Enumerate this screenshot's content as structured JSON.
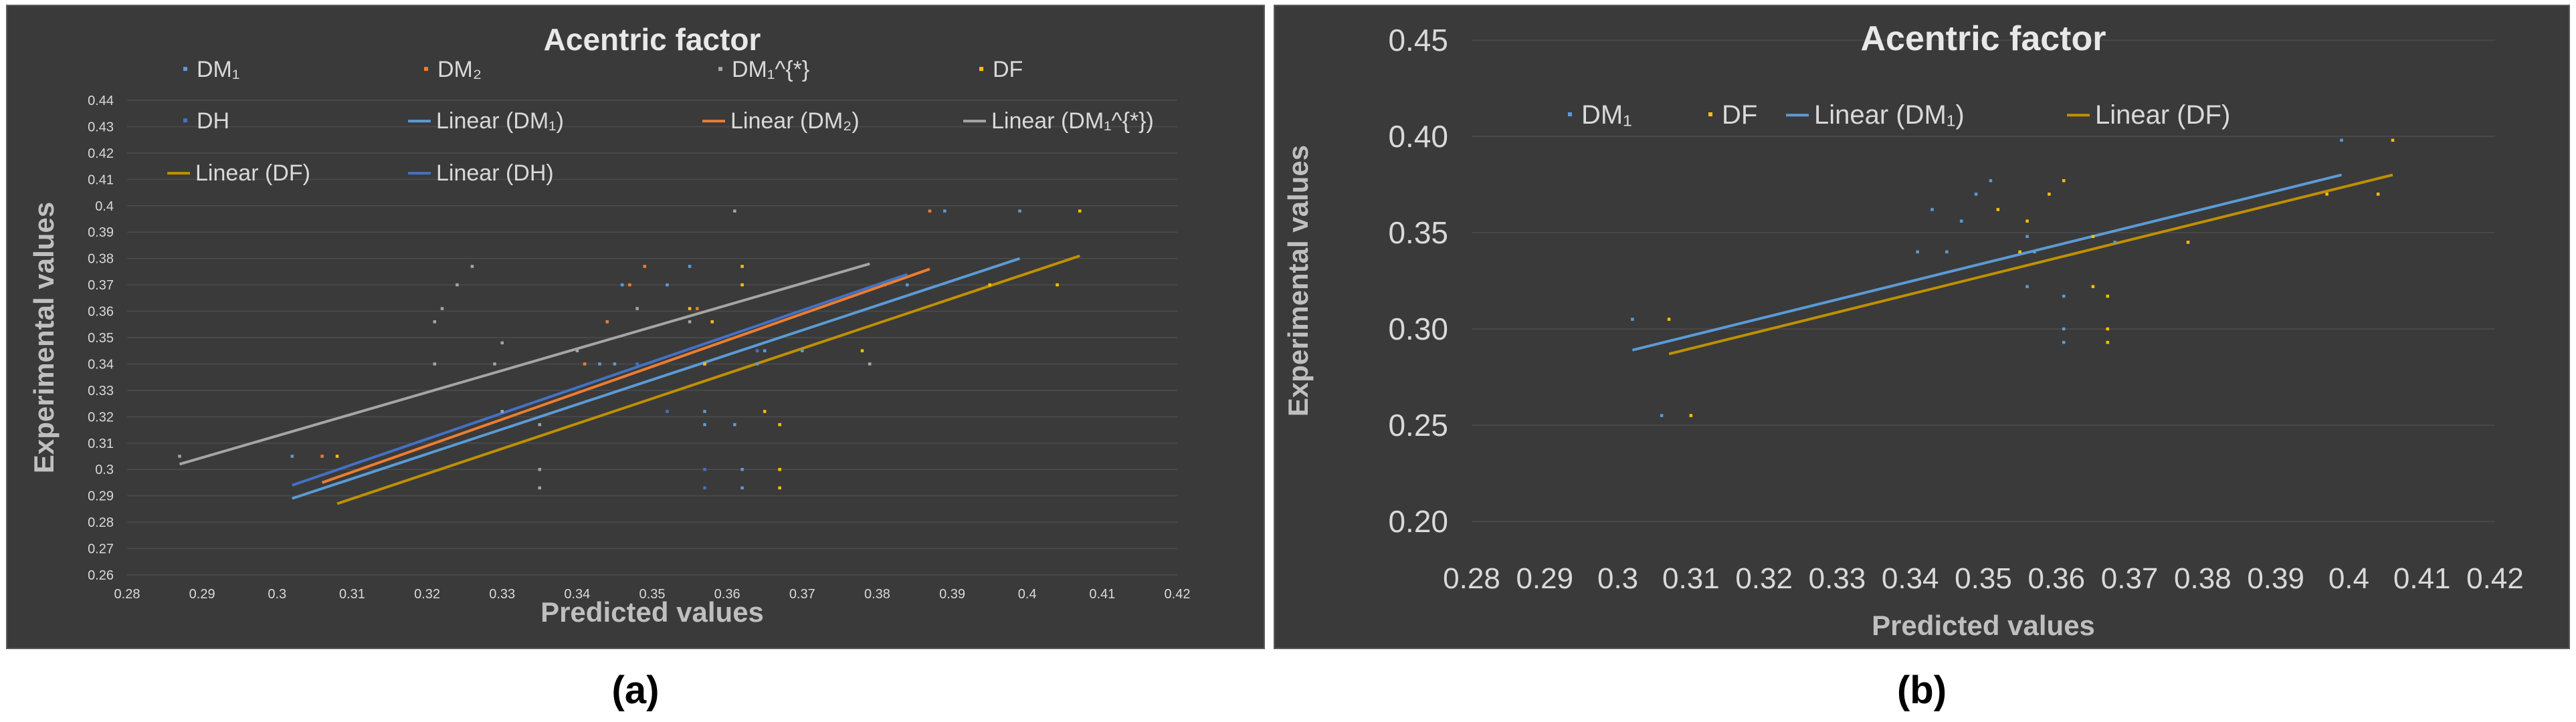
{
  "colors": {
    "bg": "#3a3a3a",
    "panel_border": "#5a5a5a",
    "grid": "#4c4c4c",
    "text_light": "#d9d9d9",
    "title": "#e8e8e8",
    "dm1": "#5b9bd5",
    "dm2": "#ed7d31",
    "dm1star": "#a5a5a5",
    "df": "#ffc000",
    "dh": "#4472c4",
    "lin_dm1": "#5b9bd5",
    "lin_dm2": "#ed7d31",
    "lin_dm1star": "#a5a5a5",
    "lin_df": "#bf9000",
    "lin_dh": "#4472c4"
  },
  "captions": [
    "(a)",
    "(b)"
  ],
  "chart_data": [
    {
      "type": "scatter",
      "title": "Acentric factor",
      "xlabel": "Predicted values",
      "ylabel": "Experimental values",
      "xlim": [
        0.28,
        0.42
      ],
      "ylim": [
        0.26,
        0.44
      ],
      "xticks": [
        "0.28",
        "0.29",
        "0.3",
        "0.31",
        "0.32",
        "0.33",
        "0.34",
        "0.35",
        "0.36",
        "0.37",
        "0.38",
        "0.39",
        "0.4",
        "0.41",
        "0.42"
      ],
      "yticks": [
        "0.26",
        "0.27",
        "0.28",
        "0.29",
        "0.3",
        "0.31",
        "0.32",
        "0.33",
        "0.34",
        "0.35",
        "0.36",
        "0.37",
        "0.38",
        "0.39",
        "0.4",
        "0.41",
        "0.42",
        "0.43",
        "0.44"
      ],
      "legend": [
        "DM₁",
        "DM₂",
        "DM₁^{*}",
        "DF",
        "DH",
        "Linear (DM₁)",
        "Linear (DM₂)",
        "Linear (DM₁^{*})",
        "Linear (DF)",
        "Linear (DH)"
      ],
      "series": [
        {
          "name": "DM₁",
          "color_key": "dm1",
          "points": [
            [
              0.302,
              0.305
            ],
            [
              0.343,
              0.34
            ],
            [
              0.345,
              0.34
            ],
            [
              0.344,
              0.356
            ],
            [
              0.346,
              0.37
            ],
            [
              0.352,
              0.37
            ],
            [
              0.355,
              0.377
            ],
            [
              0.357,
              0.322
            ],
            [
              0.357,
              0.317
            ],
            [
              0.362,
              0.3
            ],
            [
              0.362,
              0.293
            ],
            [
              0.361,
              0.317
            ],
            [
              0.364,
              0.34
            ],
            [
              0.365,
              0.345
            ],
            [
              0.357,
              0.34
            ],
            [
              0.37,
              0.345
            ],
            [
              0.389,
              0.398
            ],
            [
              0.399,
              0.398
            ],
            [
              0.384,
              0.37
            ]
          ]
        },
        {
          "name": "DM₂",
          "color_key": "dm2",
          "points": [
            [
              0.306,
              0.305
            ],
            [
              0.341,
              0.34
            ],
            [
              0.344,
              0.356
            ],
            [
              0.347,
              0.37
            ],
            [
              0.349,
              0.377
            ],
            [
              0.356,
              0.361
            ],
            [
              0.381,
              0.37
            ],
            [
              0.387,
              0.398
            ]
          ]
        },
        {
          "name": "DM₁^{*}",
          "color_key": "dm1star",
          "points": [
            [
              0.287,
              0.305
            ],
            [
              0.321,
              0.34
            ],
            [
              0.321,
              0.356
            ],
            [
              0.322,
              0.361
            ],
            [
              0.324,
              0.37
            ],
            [
              0.326,
              0.377
            ],
            [
              0.329,
              0.34
            ],
            [
              0.33,
              0.348
            ],
            [
              0.33,
              0.322
            ],
            [
              0.335,
              0.317
            ],
            [
              0.335,
              0.3
            ],
            [
              0.335,
              0.293
            ],
            [
              0.34,
              0.345
            ],
            [
              0.348,
              0.361
            ],
            [
              0.355,
              0.356
            ],
            [
              0.361,
              0.398
            ],
            [
              0.379,
              0.34
            ]
          ]
        },
        {
          "name": "DF",
          "color_key": "df",
          "points": [
            [
              0.308,
              0.305
            ],
            [
              0.355,
              0.361
            ],
            [
              0.357,
              0.34
            ],
            [
              0.358,
              0.356
            ],
            [
              0.362,
              0.377
            ],
            [
              0.362,
              0.37
            ],
            [
              0.365,
              0.322
            ],
            [
              0.367,
              0.317
            ],
            [
              0.367,
              0.3
            ],
            [
              0.367,
              0.293
            ],
            [
              0.378,
              0.345
            ],
            [
              0.395,
              0.37
            ],
            [
              0.404,
              0.37
            ],
            [
              0.407,
              0.398
            ]
          ]
        },
        {
          "name": "DH",
          "color_key": "dh",
          "points": [
            [
              0.348,
              0.34
            ],
            [
              0.352,
              0.322
            ],
            [
              0.357,
              0.293
            ],
            [
              0.357,
              0.3
            ],
            [
              0.364,
              0.345
            ]
          ]
        }
      ],
      "trendlines": [
        {
          "name": "Linear (DM₁)",
          "color_key": "lin_dm1",
          "from": [
            0.302,
            0.289
          ],
          "to": [
            0.399,
            0.38
          ]
        },
        {
          "name": "Linear (DM₂)",
          "color_key": "lin_dm2",
          "from": [
            0.306,
            0.295
          ],
          "to": [
            0.387,
            0.376
          ]
        },
        {
          "name": "Linear (DM₁^{*})",
          "color_key": "lin_dm1star",
          "from": [
            0.287,
            0.302
          ],
          "to": [
            0.379,
            0.378
          ]
        },
        {
          "name": "Linear (DF)",
          "color_key": "lin_df",
          "from": [
            0.308,
            0.287
          ],
          "to": [
            0.407,
            0.381
          ]
        },
        {
          "name": "Linear (DH)",
          "color_key": "lin_dh",
          "from": [
            0.302,
            0.294
          ],
          "to": [
            0.384,
            0.374
          ]
        }
      ]
    },
    {
      "type": "scatter",
      "title": "Acentric factor",
      "xlabel": "Predicted values",
      "ylabel": "Experimental values",
      "xlim": [
        0.28,
        0.42
      ],
      "ylim": [
        0.2,
        0.45
      ],
      "xticks": [
        "0.28",
        "0.29",
        "0.3",
        "0.31",
        "0.32",
        "0.33",
        "0.34",
        "0.35",
        "0.36",
        "0.37",
        "0.38",
        "0.39",
        "0.4",
        "0.41",
        "0.42"
      ],
      "yticks": [
        "0.20",
        "0.25",
        "0.30",
        "0.35",
        "0.40",
        "0.45"
      ],
      "legend": [
        "DM₁",
        "DF",
        "Linear (DM₁)",
        "Linear (DF)"
      ],
      "series": [
        {
          "name": "DM₁",
          "color_key": "dm1",
          "points": [
            [
              0.302,
              0.305
            ],
            [
              0.306,
              0.255
            ],
            [
              0.341,
              0.34
            ],
            [
              0.343,
              0.362
            ],
            [
              0.345,
              0.34
            ],
            [
              0.347,
              0.356
            ],
            [
              0.349,
              0.37
            ],
            [
              0.351,
              0.377
            ],
            [
              0.356,
              0.322
            ],
            [
              0.356,
              0.348
            ],
            [
              0.357,
              0.34
            ],
            [
              0.361,
              0.317
            ],
            [
              0.361,
              0.3
            ],
            [
              0.361,
              0.293
            ],
            [
              0.368,
              0.345
            ],
            [
              0.399,
              0.398
            ]
          ]
        },
        {
          "name": "DF",
          "color_key": "df",
          "points": [
            [
              0.307,
              0.305
            ],
            [
              0.31,
              0.255
            ],
            [
              0.352,
              0.362
            ],
            [
              0.355,
              0.34
            ],
            [
              0.356,
              0.356
            ],
            [
              0.359,
              0.37
            ],
            [
              0.361,
              0.377
            ],
            [
              0.365,
              0.322
            ],
            [
              0.365,
              0.348
            ],
            [
              0.367,
              0.317
            ],
            [
              0.367,
              0.3
            ],
            [
              0.367,
              0.293
            ],
            [
              0.378,
              0.345
            ],
            [
              0.397,
              0.37
            ],
            [
              0.404,
              0.37
            ],
            [
              0.406,
              0.398
            ]
          ]
        }
      ],
      "trendlines": [
        {
          "name": "Linear (DM₁)",
          "color_key": "lin_dm1",
          "from": [
            0.302,
            0.289
          ],
          "to": [
            0.399,
            0.38
          ]
        },
        {
          "name": "Linear (DF)",
          "color_key": "lin_df",
          "from": [
            0.307,
            0.287
          ],
          "to": [
            0.406,
            0.38
          ]
        }
      ]
    }
  ]
}
